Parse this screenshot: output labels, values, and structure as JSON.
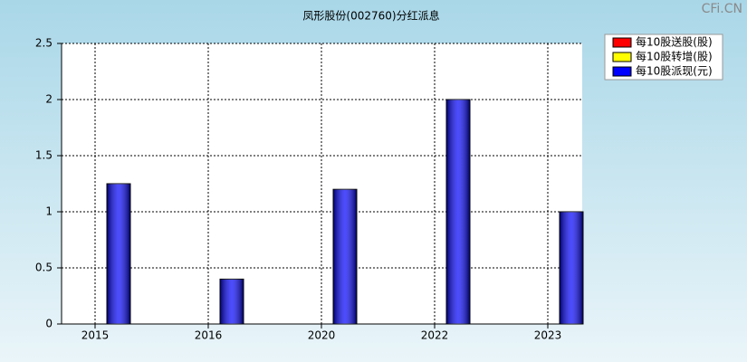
{
  "chart_data": {
    "type": "bar",
    "title": "凤形股份(002760)分红派息",
    "watermark": "CFi.CN",
    "categories": [
      "2015",
      "2016",
      "2020",
      "2022",
      "2023"
    ],
    "series": [
      {
        "name": "每10股送股(股)",
        "color": "#ff0000",
        "values": [
          0,
          0,
          0,
          0,
          0
        ]
      },
      {
        "name": "每10股转增(股)",
        "color": "#ffff00",
        "values": [
          0,
          0,
          0,
          0,
          0
        ]
      },
      {
        "name": "每10股派现(元)",
        "color": "#0000ff",
        "values": [
          1.25,
          0.4,
          1.2,
          2,
          1
        ]
      }
    ],
    "ylim": [
      0,
      2.5
    ],
    "yticks": [
      0,
      0.5,
      1,
      1.5,
      2,
      2.5
    ],
    "grid": true,
    "legend": "top-right"
  }
}
